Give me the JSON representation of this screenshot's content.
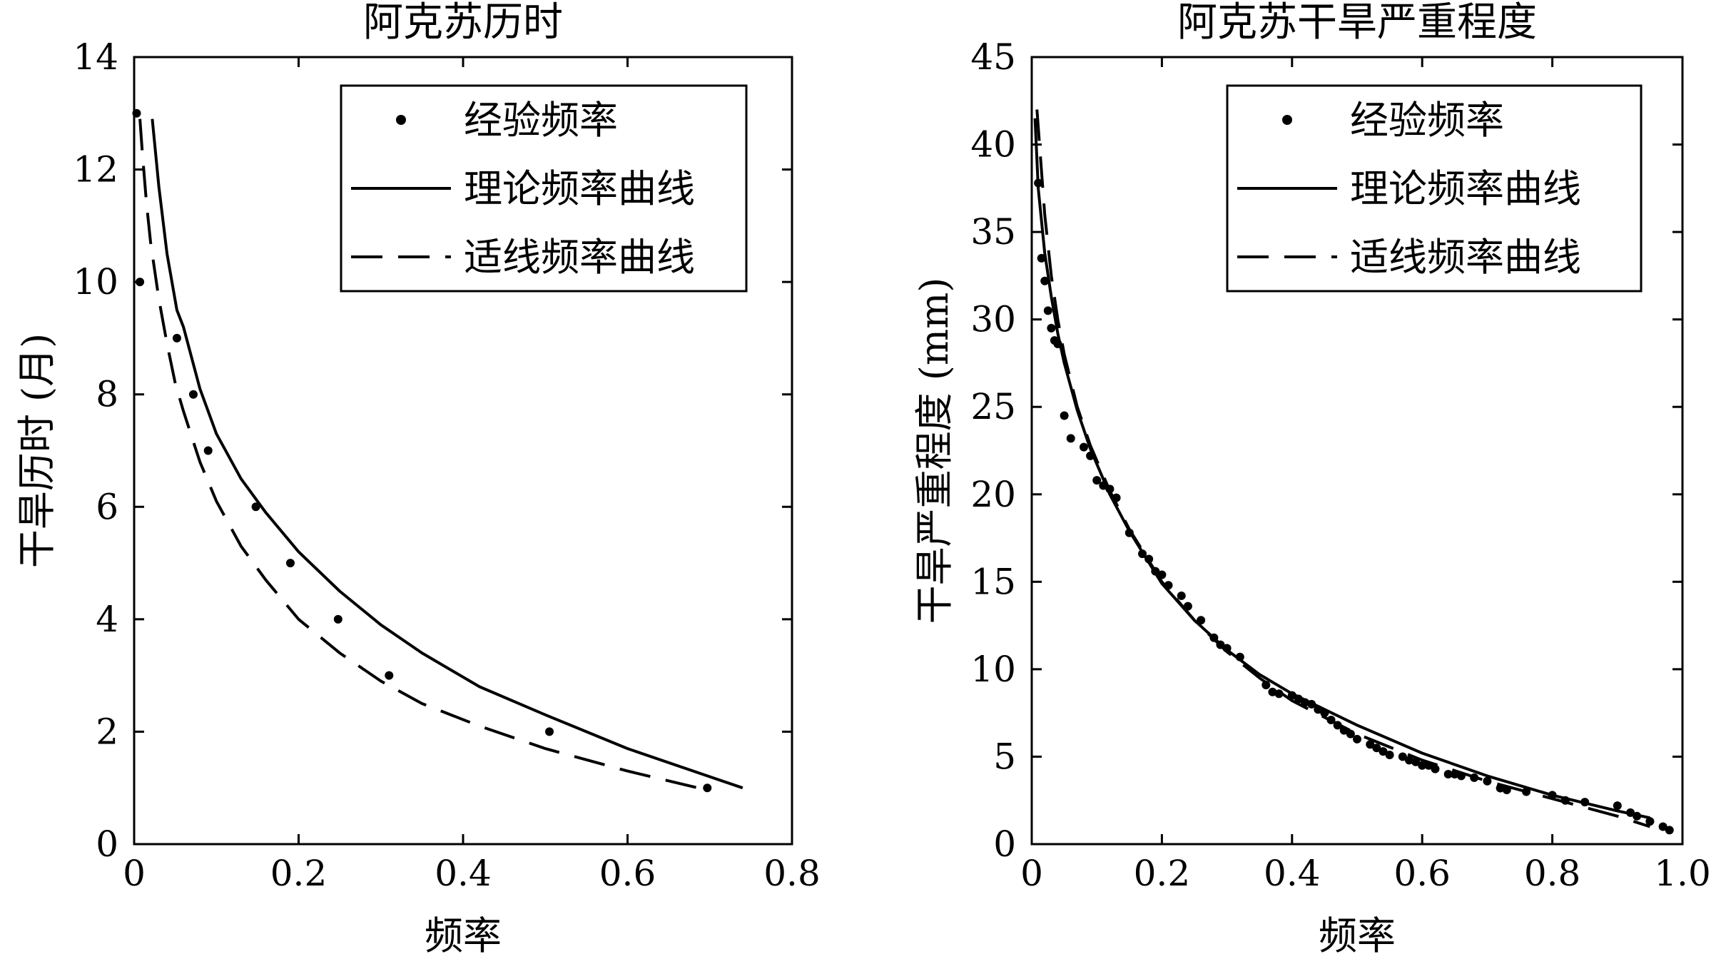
{
  "chart_data": [
    {
      "type": "line",
      "title": "阿克苏历时",
      "xlabel": "频率",
      "ylabel": "干旱历时 (月)",
      "xlim": [
        0,
        0.8
      ],
      "ylim": [
        0,
        14
      ],
      "xticks": [
        0,
        0.2,
        0.4,
        0.6,
        0.8
      ],
      "xtick_labels": [
        "0",
        "0.2",
        "0.4",
        "0.6",
        "0.8"
      ],
      "yticks": [
        0,
        2,
        4,
        6,
        8,
        10,
        12,
        14
      ],
      "ytick_labels": [
        "0",
        "2",
        "4",
        "6",
        "8",
        "10",
        "12",
        "14"
      ],
      "grid": false,
      "legend_position": "top-right",
      "series": [
        {
          "name": "经验频率",
          "style": "points",
          "x": [
            0.003,
            0.007,
            0.052,
            0.072,
            0.09,
            0.148,
            0.19,
            0.248,
            0.31,
            0.505,
            0.697
          ],
          "y": [
            13,
            10,
            9,
            8,
            7,
            6,
            5,
            4,
            3,
            2,
            1
          ]
        },
        {
          "name": "理论频率曲线",
          "style": "solid",
          "x": [
            0.022,
            0.03,
            0.04,
            0.052,
            0.06,
            0.08,
            0.1,
            0.13,
            0.16,
            0.2,
            0.25,
            0.3,
            0.35,
            0.42,
            0.5,
            0.6,
            0.7,
            0.74
          ],
          "y": [
            12.9,
            11.7,
            10.5,
            9.5,
            9.2,
            8.1,
            7.3,
            6.5,
            5.9,
            5.2,
            4.5,
            3.9,
            3.4,
            2.8,
            2.3,
            1.7,
            1.2,
            1.0
          ]
        },
        {
          "name": "适线频率曲线",
          "style": "dashed",
          "x": [
            0.007,
            0.01,
            0.015,
            0.02,
            0.03,
            0.04,
            0.05,
            0.06,
            0.08,
            0.1,
            0.13,
            0.16,
            0.2,
            0.25,
            0.3,
            0.35,
            0.42,
            0.5,
            0.6,
            0.7
          ],
          "y": [
            12.9,
            12.3,
            11.4,
            10.7,
            9.7,
            8.9,
            8.2,
            7.7,
            6.8,
            6.1,
            5.3,
            4.7,
            4.0,
            3.4,
            2.9,
            2.5,
            2.1,
            1.7,
            1.3,
            0.95
          ]
        }
      ]
    },
    {
      "type": "line",
      "title": "阿克苏干旱严重程度",
      "xlabel": "频率",
      "ylabel": "干旱严重程度 (mm)",
      "xlim": [
        0,
        1.0
      ],
      "ylim": [
        0,
        45
      ],
      "xticks": [
        0,
        0.2,
        0.4,
        0.6,
        0.8,
        1.0
      ],
      "xtick_labels": [
        "0",
        "0.2",
        "0.4",
        "0.6",
        "0.8",
        "1.0"
      ],
      "yticks": [
        0,
        5,
        10,
        15,
        20,
        25,
        30,
        35,
        40,
        45
      ],
      "ytick_labels": [
        "0",
        "5",
        "10",
        "15",
        "20",
        "25",
        "30",
        "35",
        "40",
        "45"
      ],
      "grid": false,
      "legend_position": "top-right",
      "series": [
        {
          "name": "经验频率",
          "style": "points",
          "x": [
            0.01,
            0.015,
            0.02,
            0.025,
            0.03,
            0.035,
            0.04,
            0.05,
            0.06,
            0.08,
            0.09,
            0.1,
            0.11,
            0.12,
            0.13,
            0.15,
            0.17,
            0.18,
            0.19,
            0.2,
            0.21,
            0.23,
            0.24,
            0.26,
            0.28,
            0.29,
            0.3,
            0.32,
            0.36,
            0.37,
            0.38,
            0.4,
            0.41,
            0.42,
            0.43,
            0.44,
            0.45,
            0.46,
            0.47,
            0.48,
            0.49,
            0.5,
            0.52,
            0.53,
            0.54,
            0.55,
            0.57,
            0.58,
            0.59,
            0.6,
            0.61,
            0.62,
            0.64,
            0.65,
            0.66,
            0.68,
            0.7,
            0.72,
            0.73,
            0.76,
            0.8,
            0.82,
            0.85,
            0.9,
            0.92,
            0.93,
            0.95,
            0.97,
            0.98
          ],
          "y": [
            37.8,
            33.5,
            32.2,
            30.5,
            29.5,
            28.8,
            28.6,
            24.5,
            23.2,
            22.7,
            22.2,
            20.8,
            20.5,
            20.3,
            19.8,
            17.8,
            16.6,
            16.3,
            15.6,
            15.4,
            14.8,
            14.2,
            13.6,
            12.8,
            11.8,
            11.4,
            11.2,
            10.7,
            9.1,
            8.7,
            8.6,
            8.5,
            8.3,
            8.1,
            8.0,
            7.7,
            7.5,
            7.1,
            6.8,
            6.5,
            6.3,
            6.0,
            5.7,
            5.5,
            5.3,
            5.1,
            5.0,
            4.8,
            4.7,
            4.5,
            4.5,
            4.3,
            4.0,
            4.0,
            3.9,
            3.8,
            3.6,
            3.2,
            3.1,
            3.0,
            2.8,
            2.5,
            2.4,
            2.2,
            1.8,
            1.6,
            1.3,
            1.0,
            0.8
          ]
        },
        {
          "name": "理论频率曲线",
          "style": "solid",
          "x": [
            0.005,
            0.01,
            0.02,
            0.03,
            0.04,
            0.05,
            0.07,
            0.09,
            0.12,
            0.15,
            0.2,
            0.25,
            0.3,
            0.35,
            0.4,
            0.5,
            0.6,
            0.7,
            0.8,
            0.9,
            0.95
          ],
          "y": [
            41.5,
            37.5,
            33.8,
            31.3,
            29.2,
            27.5,
            24.8,
            22.6,
            20.0,
            17.9,
            14.9,
            12.8,
            11.1,
            9.7,
            8.6,
            6.8,
            5.2,
            3.9,
            2.8,
            1.9,
            1.5
          ]
        },
        {
          "name": "适线频率曲线",
          "style": "dashed",
          "x": [
            0.008,
            0.01,
            0.02,
            0.03,
            0.04,
            0.05,
            0.07,
            0.09,
            0.12,
            0.15,
            0.2,
            0.25,
            0.3,
            0.35,
            0.4,
            0.5,
            0.6,
            0.7,
            0.8,
            0.9,
            0.95
          ],
          "y": [
            42.0,
            41.0,
            36.0,
            32.5,
            30.0,
            28.0,
            25.0,
            22.8,
            20.2,
            18.0,
            15.0,
            12.8,
            11.0,
            9.5,
            8.2,
            6.3,
            4.8,
            3.6,
            2.6,
            1.6,
            1.0
          ]
        }
      ]
    }
  ]
}
